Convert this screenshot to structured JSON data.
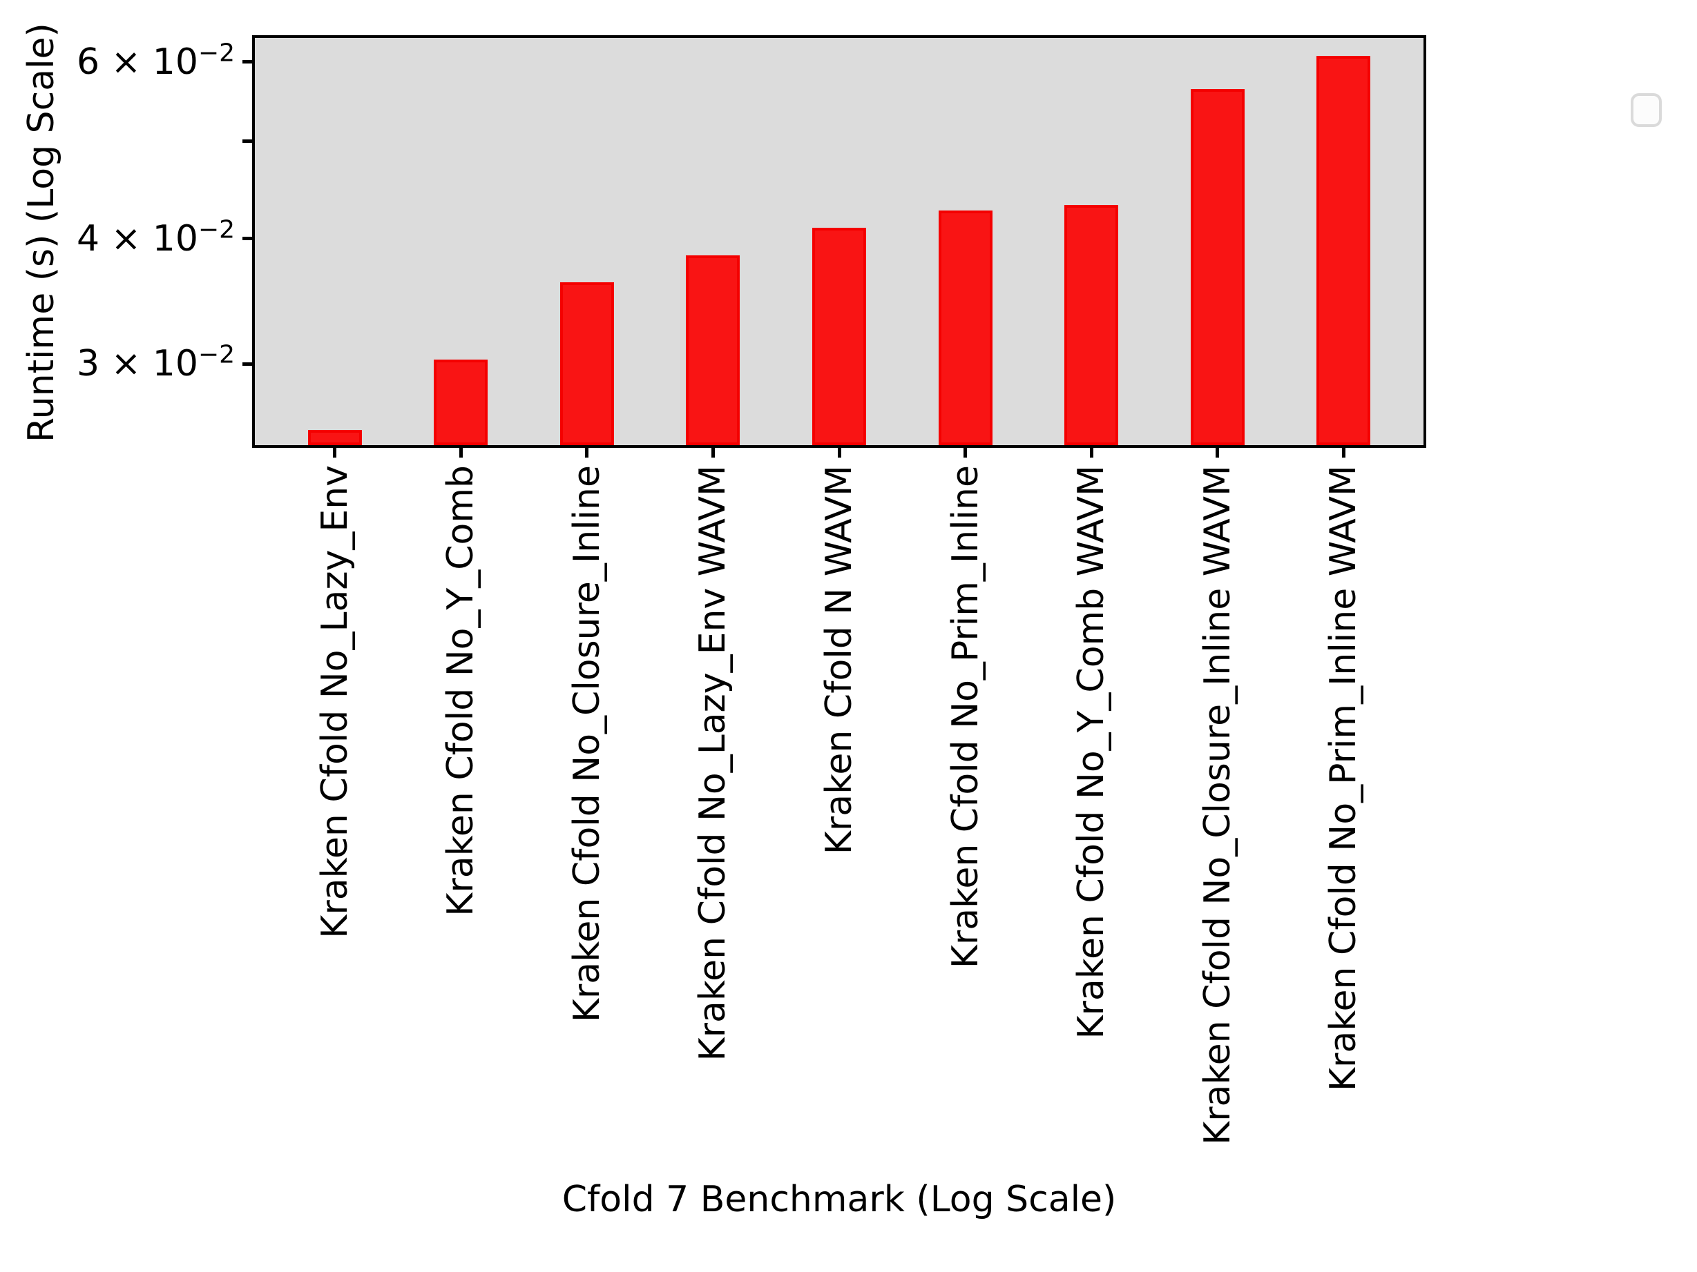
{
  "chart_data": {
    "type": "bar",
    "title": "",
    "xlabel": "Cfold 7 Benchmark (Log Scale)",
    "ylabel": "Runtime (s) (Log Scale)",
    "yscale": "log",
    "ylim": [
      0.0249,
      0.0634
    ],
    "grid": false,
    "legend": {
      "visible": true,
      "position": "upper-right",
      "entries": []
    },
    "categories": [
      "Kraken Cfold No_Lazy_Env",
      "Kraken Cfold No_Y_Comb",
      "Kraken Cfold No_Closure_Inline",
      "Kraken Cfold No_Lazy_Env WAVM",
      "Kraken Cfold N WAVM",
      "Kraken Cfold No_Prim_Inline",
      "Kraken Cfold No_Y_Comb WAVM",
      "Kraken Cfold No_Closure_Inline WAVM",
      "Kraken Cfold No_Prim_Inline WAVM"
    ],
    "values": [
      0.0258,
      0.0303,
      0.0362,
      0.0385,
      0.041,
      0.0427,
      0.0432,
      0.0564,
      0.0608
    ],
    "yticks": [
      {
        "value": 0.06,
        "coef": "6",
        "exp": "−2",
        "label": "6 × 10⁻²"
      },
      {
        "value": 0.05,
        "coef": "",
        "exp": "",
        "label": ""
      },
      {
        "value": 0.04,
        "coef": "4",
        "exp": "−2",
        "label": "4 × 10⁻²"
      },
      {
        "value": 0.03,
        "coef": "3",
        "exp": "−2",
        "label": "3 × 10⁻²"
      }
    ],
    "colors": {
      "bar_fill": "#f91414",
      "bar_edge": "#f40000",
      "plot_background": "#dcdcdc",
      "axis": "#000000",
      "text": "#000000",
      "legend_background": "#fcfcfc",
      "legend_border": "#dadada"
    }
  }
}
